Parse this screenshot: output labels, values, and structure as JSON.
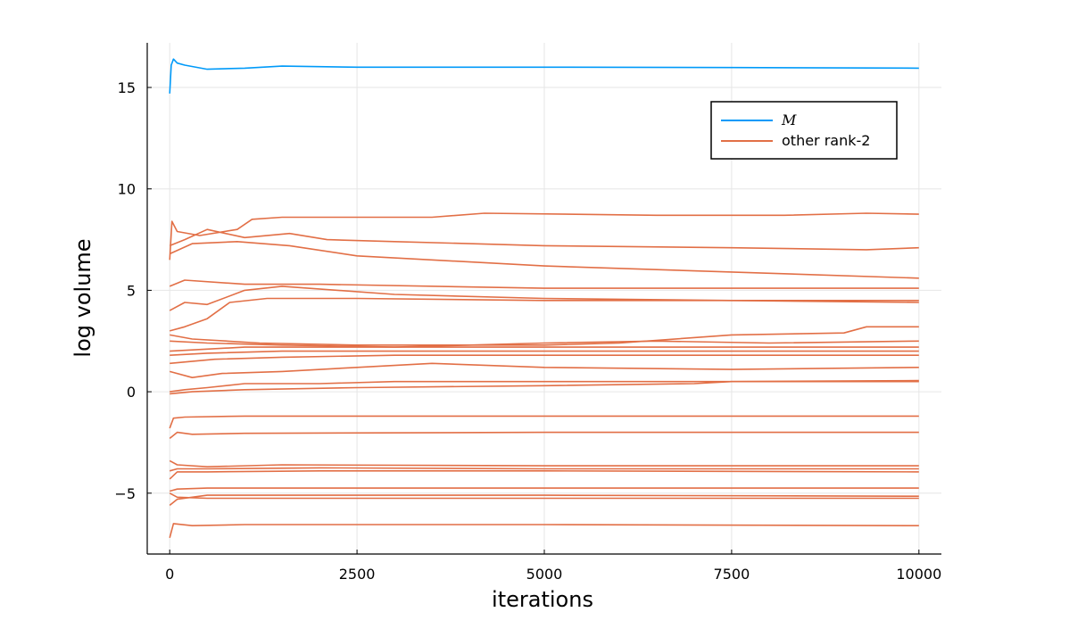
{
  "chart_data": {
    "type": "line",
    "xlabel": "iterations",
    "ylabel": "log volume",
    "xlim": [
      -300,
      10300
    ],
    "ylim": [
      -8,
      17.2
    ],
    "xticks": [
      0,
      2500,
      5000,
      7500,
      10000
    ],
    "yticks": [
      -5,
      0,
      5,
      10,
      15
    ],
    "xtick_labels": [
      "0",
      "2500",
      "5000",
      "7500",
      "10000"
    ],
    "ytick_labels": [
      "−5",
      "0",
      "5",
      "10",
      "15"
    ],
    "grid": true,
    "legend_position": "top-right",
    "legend": [
      {
        "label": "M",
        "color": "#009af9"
      },
      {
        "label": "other rank-2",
        "color": "#e26f46"
      }
    ],
    "series": [
      {
        "group": "M",
        "color": "#009af9",
        "points": [
          [
            0,
            14.7
          ],
          [
            20,
            16.1
          ],
          [
            50,
            16.4
          ],
          [
            100,
            16.2
          ],
          [
            200,
            16.1
          ],
          [
            500,
            15.9
          ],
          [
            1000,
            15.95
          ],
          [
            1500,
            16.05
          ],
          [
            2500,
            16.0
          ],
          [
            5000,
            16.0
          ],
          [
            7500,
            15.98
          ],
          [
            10000,
            15.95
          ]
        ]
      },
      {
        "group": "other",
        "color": "#e26f46",
        "points": [
          [
            0,
            6.5
          ],
          [
            30,
            8.4
          ],
          [
            100,
            7.9
          ],
          [
            400,
            7.7
          ],
          [
            900,
            8.0
          ],
          [
            1100,
            8.5
          ],
          [
            1500,
            8.6
          ],
          [
            3500,
            8.6
          ],
          [
            4200,
            8.8
          ],
          [
            6500,
            8.7
          ],
          [
            8200,
            8.7
          ],
          [
            9300,
            8.8
          ],
          [
            10000,
            8.75
          ]
        ]
      },
      {
        "group": "other",
        "color": "#e26f46",
        "points": [
          [
            0,
            7.2
          ],
          [
            200,
            7.5
          ],
          [
            500,
            8.0
          ],
          [
            1000,
            7.6
          ],
          [
            1600,
            7.8
          ],
          [
            2100,
            7.5
          ],
          [
            3000,
            7.4
          ],
          [
            5000,
            7.2
          ],
          [
            7500,
            7.1
          ],
          [
            9300,
            7.0
          ],
          [
            10000,
            7.1
          ]
        ]
      },
      {
        "group": "other",
        "color": "#e26f46",
        "points": [
          [
            0,
            6.8
          ],
          [
            300,
            7.3
          ],
          [
            900,
            7.4
          ],
          [
            1600,
            7.2
          ],
          [
            2500,
            6.7
          ],
          [
            5000,
            6.2
          ],
          [
            7500,
            5.9
          ],
          [
            10000,
            5.6
          ]
        ]
      },
      {
        "group": "other",
        "color": "#e26f46",
        "points": [
          [
            0,
            5.2
          ],
          [
            200,
            5.5
          ],
          [
            1000,
            5.3
          ],
          [
            2000,
            5.3
          ],
          [
            5000,
            5.1
          ],
          [
            7500,
            5.1
          ],
          [
            10000,
            5.1
          ]
        ]
      },
      {
        "group": "other",
        "color": "#e26f46",
        "points": [
          [
            0,
            4.0
          ],
          [
            200,
            4.4
          ],
          [
            500,
            4.3
          ],
          [
            1000,
            5.0
          ],
          [
            1500,
            5.2
          ],
          [
            3000,
            4.8
          ],
          [
            5000,
            4.6
          ],
          [
            7500,
            4.5
          ],
          [
            10000,
            4.5
          ]
        ]
      },
      {
        "group": "other",
        "color": "#e26f46",
        "points": [
          [
            0,
            3.0
          ],
          [
            200,
            3.2
          ],
          [
            500,
            3.6
          ],
          [
            800,
            4.4
          ],
          [
            1300,
            4.6
          ],
          [
            2500,
            4.6
          ],
          [
            5000,
            4.5
          ],
          [
            7500,
            4.5
          ],
          [
            10000,
            4.4
          ]
        ]
      },
      {
        "group": "other",
        "color": "#e26f46",
        "points": [
          [
            0,
            2.8
          ],
          [
            300,
            2.6
          ],
          [
            1200,
            2.4
          ],
          [
            2500,
            2.3
          ],
          [
            5000,
            2.3
          ],
          [
            6000,
            2.4
          ],
          [
            7500,
            2.8
          ],
          [
            9000,
            2.9
          ],
          [
            9300,
            3.2
          ],
          [
            10000,
            3.2
          ]
        ]
      },
      {
        "group": "other",
        "color": "#e26f46",
        "points": [
          [
            0,
            2.5
          ],
          [
            500,
            2.4
          ],
          [
            1500,
            2.3
          ],
          [
            3000,
            2.2
          ],
          [
            5000,
            2.4
          ],
          [
            6500,
            2.5
          ],
          [
            8000,
            2.4
          ],
          [
            10000,
            2.5
          ]
        ]
      },
      {
        "group": "other",
        "color": "#e26f46",
        "points": [
          [
            0,
            2.0
          ],
          [
            500,
            2.1
          ],
          [
            1000,
            2.2
          ],
          [
            3000,
            2.2
          ],
          [
            5000,
            2.2
          ],
          [
            7500,
            2.2
          ],
          [
            10000,
            2.2
          ]
        ]
      },
      {
        "group": "other",
        "color": "#e26f46",
        "points": [
          [
            0,
            1.8
          ],
          [
            500,
            1.9
          ],
          [
            1500,
            2.0
          ],
          [
            3000,
            2.0
          ],
          [
            5000,
            2.0
          ],
          [
            7500,
            2.0
          ],
          [
            10000,
            2.0
          ]
        ]
      },
      {
        "group": "other",
        "color": "#e26f46",
        "points": [
          [
            0,
            1.4
          ],
          [
            600,
            1.6
          ],
          [
            1500,
            1.7
          ],
          [
            3000,
            1.8
          ],
          [
            5000,
            1.8
          ],
          [
            7500,
            1.8
          ],
          [
            10000,
            1.8
          ]
        ]
      },
      {
        "group": "other",
        "color": "#e26f46",
        "points": [
          [
            0,
            1.0
          ],
          [
            300,
            0.7
          ],
          [
            700,
            0.9
          ],
          [
            1500,
            1.0
          ],
          [
            2500,
            1.2
          ],
          [
            3500,
            1.4
          ],
          [
            5000,
            1.2
          ],
          [
            7500,
            1.1
          ],
          [
            10000,
            1.2
          ]
        ]
      },
      {
        "group": "other",
        "color": "#e26f46",
        "points": [
          [
            0,
            0.0
          ],
          [
            200,
            0.1
          ],
          [
            500,
            0.2
          ],
          [
            1000,
            0.4
          ],
          [
            2000,
            0.4
          ],
          [
            3000,
            0.5
          ],
          [
            5000,
            0.5
          ],
          [
            7500,
            0.5
          ],
          [
            10000,
            0.55
          ]
        ]
      },
      {
        "group": "other",
        "color": "#e26f46",
        "points": [
          [
            0,
            -0.1
          ],
          [
            300,
            0.0
          ],
          [
            1000,
            0.1
          ],
          [
            2500,
            0.2
          ],
          [
            5000,
            0.3
          ],
          [
            7000,
            0.4
          ],
          [
            7500,
            0.5
          ],
          [
            10000,
            0.5
          ]
        ]
      },
      {
        "group": "other",
        "color": "#e26f46",
        "points": [
          [
            0,
            -1.8
          ],
          [
            50,
            -1.3
          ],
          [
            200,
            -1.25
          ],
          [
            1000,
            -1.2
          ],
          [
            5000,
            -1.2
          ],
          [
            10000,
            -1.2
          ]
        ]
      },
      {
        "group": "other",
        "color": "#e26f46",
        "points": [
          [
            0,
            -2.3
          ],
          [
            100,
            -2.0
          ],
          [
            300,
            -2.1
          ],
          [
            1000,
            -2.05
          ],
          [
            5000,
            -2.0
          ],
          [
            10000,
            -2.0
          ]
        ]
      },
      {
        "group": "other",
        "color": "#e26f46",
        "points": [
          [
            0,
            -3.4
          ],
          [
            100,
            -3.6
          ],
          [
            500,
            -3.7
          ],
          [
            1500,
            -3.6
          ],
          [
            5000,
            -3.65
          ],
          [
            10000,
            -3.65
          ]
        ]
      },
      {
        "group": "other",
        "color": "#e26f46",
        "points": [
          [
            0,
            -3.9
          ],
          [
            100,
            -3.8
          ],
          [
            500,
            -3.8
          ],
          [
            2000,
            -3.75
          ],
          [
            5000,
            -3.8
          ],
          [
            10000,
            -3.8
          ]
        ]
      },
      {
        "group": "other",
        "color": "#e26f46",
        "points": [
          [
            0,
            -4.3
          ],
          [
            100,
            -3.95
          ],
          [
            500,
            -3.95
          ],
          [
            2000,
            -3.9
          ],
          [
            5000,
            -3.9
          ],
          [
            10000,
            -3.95
          ]
        ]
      },
      {
        "group": "other",
        "color": "#e26f46",
        "points": [
          [
            0,
            -4.9
          ],
          [
            100,
            -4.8
          ],
          [
            500,
            -4.75
          ],
          [
            2000,
            -4.75
          ],
          [
            5000,
            -4.75
          ],
          [
            10000,
            -4.75
          ]
        ]
      },
      {
        "group": "other",
        "color": "#e26f46",
        "points": [
          [
            0,
            -5.6
          ],
          [
            100,
            -5.3
          ],
          [
            500,
            -5.1
          ],
          [
            2000,
            -5.1
          ],
          [
            5000,
            -5.1
          ],
          [
            10000,
            -5.15
          ]
        ]
      },
      {
        "group": "other",
        "color": "#e26f46",
        "points": [
          [
            0,
            -5.0
          ],
          [
            100,
            -5.2
          ],
          [
            500,
            -5.25
          ],
          [
            2000,
            -5.25
          ],
          [
            5000,
            -5.25
          ],
          [
            10000,
            -5.25
          ]
        ]
      },
      {
        "group": "other",
        "color": "#e26f46",
        "points": [
          [
            0,
            -7.2
          ],
          [
            50,
            -6.5
          ],
          [
            300,
            -6.6
          ],
          [
            1000,
            -6.55
          ],
          [
            5000,
            -6.55
          ],
          [
            10000,
            -6.6
          ]
        ]
      }
    ]
  }
}
